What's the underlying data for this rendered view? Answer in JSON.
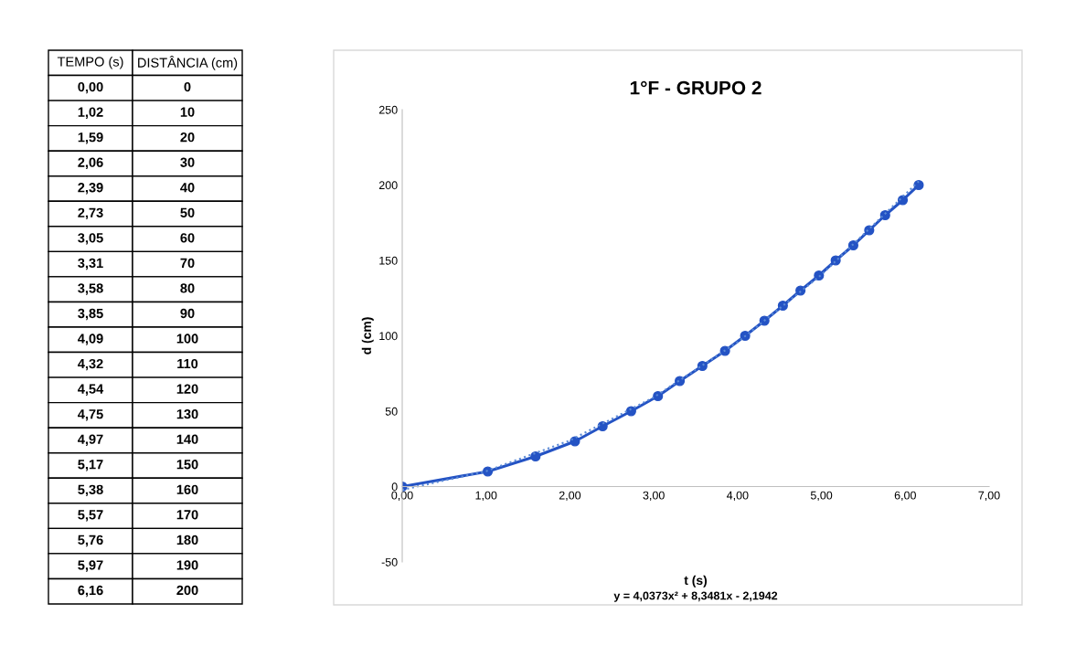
{
  "chart_data": {
    "type": "line",
    "title": "1°F - GRUPO 2",
    "xlabel": "t (s)",
    "ylabel": "d (cm)",
    "annotations": [
      "TEMPO (s)",
      "DISTÂNCIA (cm)",
      "y = 4,0373x² + 8,3481x - 2,1942",
      "0,00",
      "1,02",
      "1,59",
      "2,06",
      "2,39",
      "2,73",
      "3,05",
      "3,31",
      "3,58",
      "3,85",
      "4,09",
      "4,32",
      "4,54",
      "4,75",
      "4,97",
      "5,17",
      "5,38",
      "5,57",
      "5,76",
      "5,97",
      "6,16",
      "0",
      "10",
      "20",
      "30",
      "40",
      "50",
      "60",
      "70",
      "80",
      "90",
      "100",
      "110",
      "120",
      "130",
      "140",
      "150",
      "160",
      "170",
      "180",
      "190",
      "200"
    ],
    "x": [
      0.0,
      1.02,
      1.59,
      2.06,
      2.39,
      2.73,
      3.05,
      3.31,
      3.58,
      3.85,
      4.09,
      4.32,
      4.54,
      4.75,
      4.97,
      5.17,
      5.38,
      5.57,
      5.76,
      5.97,
      6.16
    ],
    "series": [
      {
        "color": "#2453c4",
        "values": [
          0,
          10,
          20,
          30,
          40,
          50,
          60,
          70,
          80,
          90,
          100,
          110,
          120,
          130,
          140,
          150,
          160,
          170,
          180,
          190,
          200
        ],
        "marker": "circle",
        "line_style": "solid"
      },
      {
        "type": "line",
        "color": "#5b8ad6",
        "x": [
          0,
          1,
          2,
          3,
          4,
          5,
          6.16
        ],
        "values": [
          -2.2,
          10.2,
          30.6,
          59.2,
          95.8,
          140.5,
          202.4
        ],
        "marker": "none",
        "line_style": "dotted"
      }
    ],
    "xlim": [
      0,
      7
    ],
    "xticks": [
      {
        "value": 0,
        "label": "0,00"
      },
      {
        "value": 1,
        "label": "1,00"
      },
      {
        "value": 2,
        "label": "2,00"
      },
      {
        "value": 3,
        "label": "3,00"
      },
      {
        "value": 4,
        "label": "4,00"
      },
      {
        "value": 5,
        "label": "5,00"
      },
      {
        "value": 6,
        "label": "6,00"
      },
      {
        "value": 7,
        "label": "7,00"
      }
    ],
    "ylim": [
      -50,
      250
    ],
    "yticks": [
      -50,
      0,
      50,
      100,
      150,
      200,
      250
    ],
    "grid": false,
    "legend": false
  }
}
